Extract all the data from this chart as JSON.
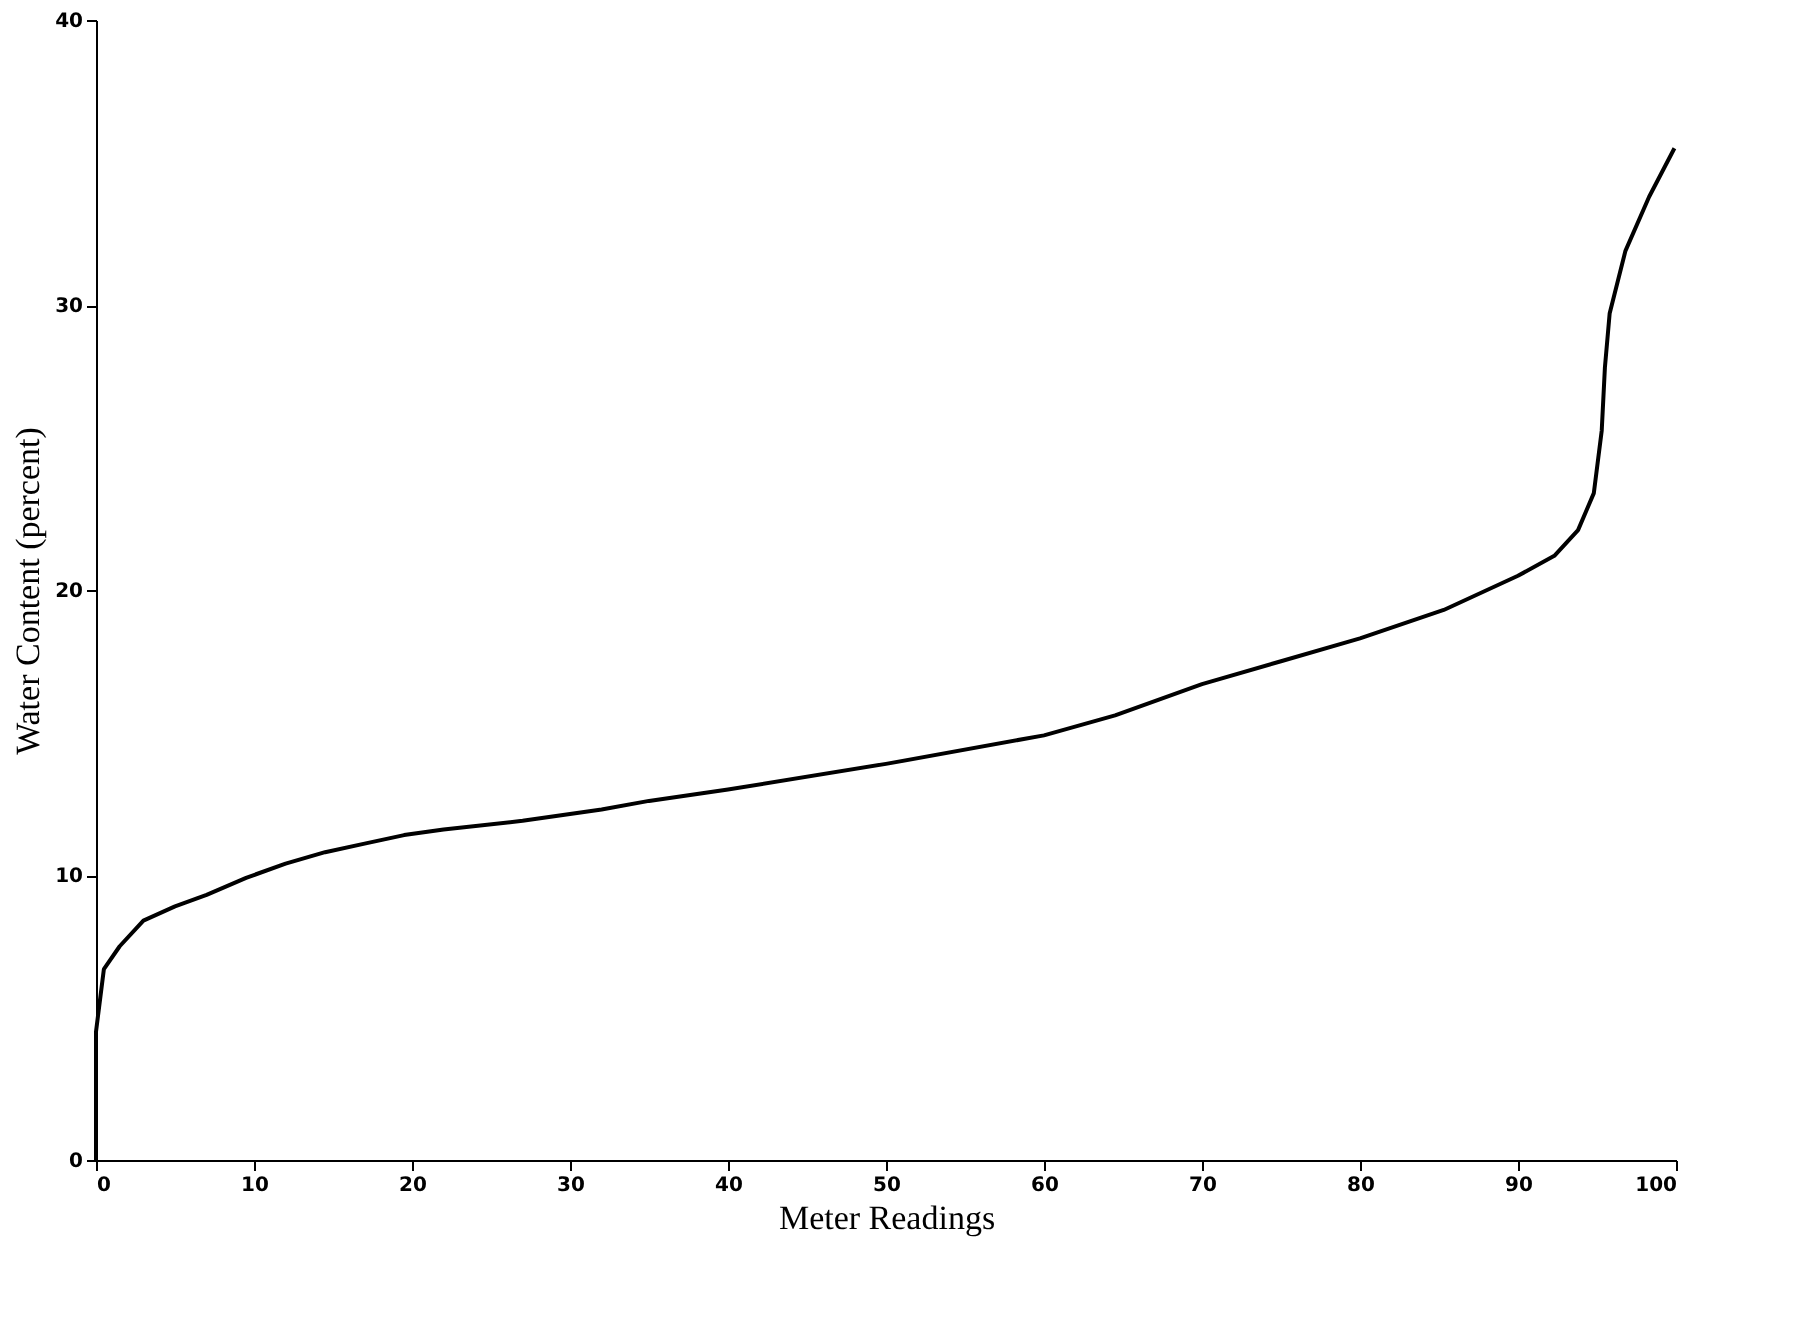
{
  "chart_data": {
    "type": "line",
    "xlabel": "Meter Readings",
    "ylabel": "Water Content (percent)",
    "xlim": [
      0,
      100
    ],
    "ylim": [
      0,
      40
    ],
    "xticks": [
      0,
      10,
      20,
      30,
      40,
      50,
      60,
      70,
      80,
      90,
      100
    ],
    "yticks": [
      0,
      10,
      20,
      30,
      40
    ],
    "marker": "none",
    "line_style": "solid",
    "series": [
      {
        "color": "#000000",
        "x": [
          0,
          0,
          0,
          0.5,
          1.5,
          3,
          5,
          7,
          9.5,
          12,
          14.5,
          17,
          19.5,
          22,
          27,
          32,
          35,
          40,
          50,
          60,
          64.5,
          70,
          75,
          80,
          85.3,
          90,
          92.3,
          93.8,
          94.8,
          95.3,
          95.5,
          95.8,
          96.8,
          98.3,
          99.9
        ],
        "values": [
          0,
          2.5,
          4.5,
          6.7,
          7.5,
          8.4,
          8.9,
          9.3,
          9.9,
          10.4,
          10.8,
          11.1,
          11.4,
          11.6,
          11.9,
          12.3,
          12.6,
          13.0,
          13.9,
          14.9,
          15.6,
          16.7,
          17.5,
          18.3,
          19.3,
          20.5,
          21.2,
          22.1,
          23.4,
          25.6,
          27.8,
          29.7,
          31.9,
          33.8,
          35.5
        ]
      }
    ]
  }
}
